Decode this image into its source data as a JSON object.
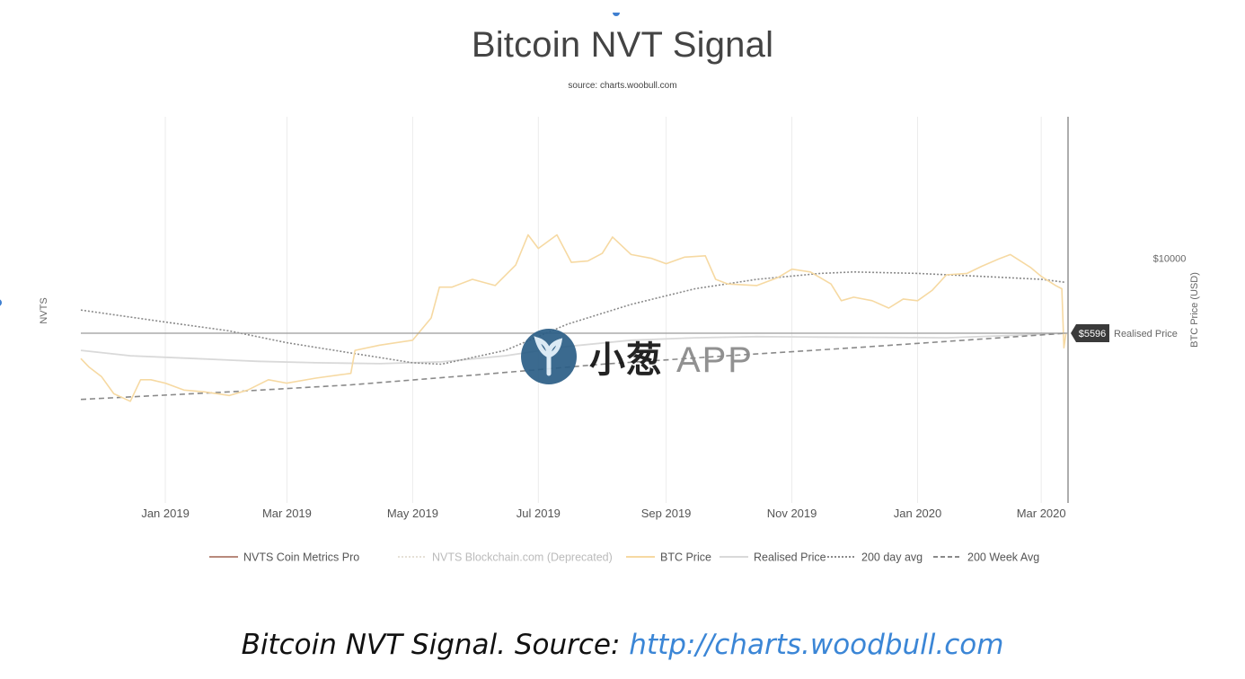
{
  "caption": {
    "prefix": "Bitcoin NVT Signal. Source: ",
    "link_text": "http://charts.woodbull.com"
  },
  "watermark": {
    "brand_cn": "小葱",
    "brand_app": "APP"
  },
  "colors": {
    "btc_price": "#f6d9a2",
    "realised_price": "#d9d9d9",
    "avg200day": "#8a8a8a",
    "avg200week": "#8a8a8a",
    "nvts_coin_metrics": "#b88a7c",
    "nvts_blockchain": "#e6e0d6",
    "marker_bg": "#3a3a3a"
  },
  "chart_data": {
    "type": "line",
    "title": "Bitcoin NVT Signal",
    "subtitle": "source: charts.woobull.com",
    "ylabel_left": "NVTS",
    "ylabel_right": "BTC Price (USD)",
    "x_range": [
      "2018-11-21",
      "2020-03-14"
    ],
    "x_ticks": [
      "Jan 2019",
      "Mar 2019",
      "May 2019",
      "Jul 2019",
      "Sep 2019",
      "Nov 2019",
      "Jan 2020",
      "Mar 2020"
    ],
    "y_scale": "log",
    "y_range": [
      1500,
      30000
    ],
    "y_tick_labels": [
      "$10000"
    ],
    "y_tick_values": [
      10000
    ],
    "grid": true,
    "legend_position": "bottom",
    "current_marker": {
      "label": "$5596",
      "value": 5596,
      "note": "Realised Price"
    },
    "legend": [
      {
        "name": "NVTS Coin Metrics Pro",
        "style": "solid",
        "faded": false
      },
      {
        "name": "NVTS Blockchain.com (Deprecated)",
        "style": "dotted",
        "faded": true
      },
      {
        "name": "BTC Price",
        "style": "solid",
        "faded": false
      },
      {
        "name": "Realised Price",
        "style": "solid",
        "faded": false
      },
      {
        "name": "200 day avg",
        "style": "dotted",
        "faded": false
      },
      {
        "name": "200 Week Avg",
        "style": "dashed",
        "faded": false
      }
    ],
    "series": [
      {
        "name": "BTC Price",
        "x": [
          "2018-11-21",
          "2018-11-25",
          "2018-12-01",
          "2018-12-07",
          "2018-12-15",
          "2018-12-20",
          "2018-12-25",
          "2019-01-01",
          "2019-01-10",
          "2019-01-20",
          "2019-02-01",
          "2019-02-10",
          "2019-02-20",
          "2019-03-01",
          "2019-03-15",
          "2019-04-01",
          "2019-04-03",
          "2019-04-15",
          "2019-05-01",
          "2019-05-10",
          "2019-05-14",
          "2019-05-20",
          "2019-05-30",
          "2019-06-10",
          "2019-06-20",
          "2019-06-26",
          "2019-07-01",
          "2019-07-10",
          "2019-07-17",
          "2019-07-25",
          "2019-08-01",
          "2019-08-06",
          "2019-08-15",
          "2019-08-25",
          "2019-09-01",
          "2019-09-10",
          "2019-09-20",
          "2019-09-25",
          "2019-10-01",
          "2019-10-15",
          "2019-10-25",
          "2019-11-01",
          "2019-11-10",
          "2019-11-20",
          "2019-11-25",
          "2019-12-01",
          "2019-12-10",
          "2019-12-18",
          "2019-12-25",
          "2020-01-01",
          "2020-01-08",
          "2020-01-15",
          "2020-01-25",
          "2020-02-01",
          "2020-02-10",
          "2020-02-15",
          "2020-02-25",
          "2020-03-01",
          "2020-03-08",
          "2020-03-11",
          "2020-03-12",
          "2020-03-13"
        ],
        "values": [
          4600,
          4300,
          4000,
          3500,
          3300,
          3900,
          3900,
          3800,
          3600,
          3550,
          3450,
          3600,
          3900,
          3800,
          3950,
          4100,
          4900,
          5100,
          5300,
          6300,
          8000,
          8000,
          8500,
          8100,
          9500,
          12000,
          10800,
          12000,
          9700,
          9800,
          10400,
          11800,
          10300,
          10000,
          9600,
          10100,
          10200,
          8500,
          8200,
          8100,
          8600,
          9200,
          9000,
          8200,
          7200,
          7400,
          7200,
          6800,
          7300,
          7200,
          7800,
          8800,
          8900,
          9400,
          10000,
          10300,
          9300,
          8700,
          8100,
          7900,
          5000,
          5596
        ]
      },
      {
        "name": "Realised Price",
        "x": [
          "2018-11-21",
          "2018-12-15",
          "2019-01-15",
          "2019-02-15",
          "2019-03-15",
          "2019-04-15",
          "2019-05-15",
          "2019-06-15",
          "2019-07-15",
          "2019-08-15",
          "2019-09-15",
          "2019-10-15",
          "2019-11-15",
          "2019-12-15",
          "2020-01-15",
          "2020-02-15",
          "2020-03-01",
          "2020-03-13"
        ],
        "values": [
          4900,
          4700,
          4600,
          4500,
          4450,
          4420,
          4480,
          4700,
          5050,
          5300,
          5400,
          5450,
          5430,
          5420,
          5400,
          5500,
          5560,
          5596
        ]
      },
      {
        "name": "200 day avg",
        "x": [
          "2018-11-21",
          "2019-01-01",
          "2019-02-01",
          "2019-03-01",
          "2019-04-01",
          "2019-05-01",
          "2019-05-15",
          "2019-06-15",
          "2019-07-15",
          "2019-08-15",
          "2019-09-15",
          "2019-10-15",
          "2019-11-15",
          "2019-12-01",
          "2020-01-01",
          "2020-02-01",
          "2020-03-01",
          "2020-03-13"
        ],
        "values": [
          6700,
          6100,
          5700,
          5200,
          4800,
          4450,
          4400,
          4900,
          6000,
          7000,
          7900,
          8500,
          8900,
          9000,
          8900,
          8700,
          8500,
          8300
        ]
      },
      {
        "name": "200 Week Avg",
        "x": [
          "2018-11-21",
          "2019-02-01",
          "2019-04-01",
          "2019-06-01",
          "2019-08-01",
          "2019-10-01",
          "2019-12-01",
          "2020-02-01",
          "2020-03-13"
        ],
        "values": [
          3350,
          3550,
          3750,
          4050,
          4400,
          4700,
          5000,
          5350,
          5596
        ]
      }
    ]
  }
}
